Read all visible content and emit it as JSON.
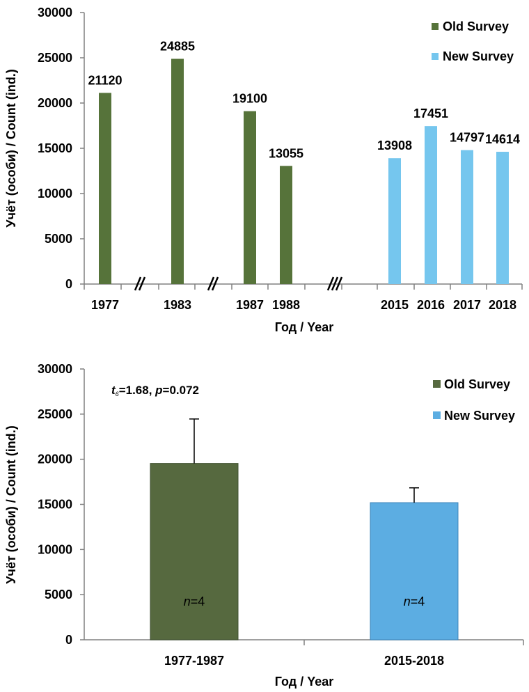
{
  "chart_data": [
    {
      "type": "bar",
      "categories": [
        "1977",
        "1983",
        "1987",
        "1988",
        "2015",
        "2016",
        "2017",
        "2018"
      ],
      "values": [
        21120,
        24885,
        19100,
        13055,
        13908,
        17451,
        14797,
        14614
      ],
      "data_labels": [
        "21120",
        "24885",
        "19100",
        "13055",
        "13908",
        "17451",
        "14797",
        "14614"
      ],
      "bar_series": [
        "Old Survey",
        "Old Survey",
        "Old Survey",
        "Old Survey",
        "New Survey",
        "New Survey",
        "New Survey",
        "New Survey"
      ],
      "series": [
        {
          "name": "Old Survey",
          "color": "#56733a"
        },
        {
          "name": "New Survey",
          "color": "#75c6ee"
        }
      ],
      "xlabel": "Год / Year",
      "ylabel": "Учёт (особи) / Count (ind.)",
      "ylim": [
        0,
        30000
      ],
      "yticks": [
        "0",
        "5000",
        "10000",
        "15000",
        "20000",
        "25000",
        "30000"
      ],
      "axis_breaks": [
        "//",
        "//",
        "///"
      ],
      "legend": "top-right",
      "grid": false
    },
    {
      "type": "bar",
      "categories": [
        "1977-1987",
        "2015-2018"
      ],
      "values": [
        19540,
        15193
      ],
      "error_bars_upper": [
        4920,
        1640
      ],
      "series": [
        {
          "name": "Old Survey",
          "color": "#56693f"
        },
        {
          "name": "New Survey",
          "color": "#5cade2"
        }
      ],
      "bar_annotations": [
        {
          "italic": "n",
          "text": "=4"
        },
        {
          "italic": "n",
          "text": "=4"
        }
      ],
      "annotation": {
        "t_symbol": "t",
        "t_subscript": "6",
        "t_value": "=1.68, ",
        "p_symbol": "p",
        "p_value": "=0.072"
      },
      "xlabel": "Год / Year",
      "ylabel": "Учёт (особи) / Count (ind.)",
      "ylim": [
        0,
        30000
      ],
      "yticks": [
        "0",
        "5000",
        "10000",
        "15000",
        "20000",
        "25000",
        "30000"
      ],
      "legend": "top-right",
      "grid": false
    }
  ]
}
